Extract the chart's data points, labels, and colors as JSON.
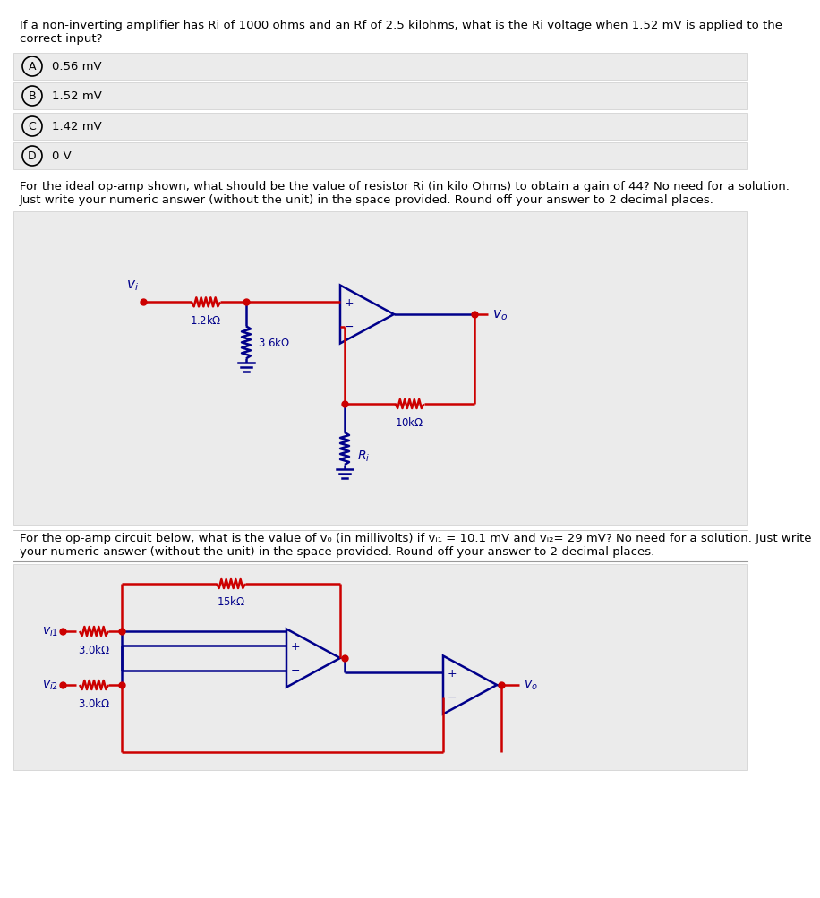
{
  "white": "#ffffff",
  "red": "#cc0000",
  "blue": "#00008B",
  "bg_gray": "#ebebeb",
  "black": "#000000",
  "q1_text_line1": "If a non-inverting amplifier has Ri of 1000 ohms and an Rf of 2.5 kilohms, what is the Ri voltage when 1.52 mV is applied to the",
  "q1_text_line2": "correct input?",
  "choices": [
    "0.56 mV",
    "1.52 mV",
    "1.42 mV",
    "0 V"
  ],
  "choice_labels": [
    "A",
    "B",
    "C",
    "D"
  ],
  "q2_line1": "For the ideal op-amp shown, what should be the value of resistor Ri (in kilo Ohms) to obtain a gain of 44? No need for a solution.",
  "q2_line2": "Just write your numeric answer (without the unit) in the space provided. Round off your answer to 2 decimal places.",
  "q3_line1": "For the op-amp circuit below, what is the value of v₀ (in millivolts) if vᵢ₁ = 10.1 mV and vᵢ₂= 29 mV? No need for a solution. Just write",
  "q3_line2": "your numeric answer (without the unit) in the space provided. Round off your answer to 2 decimal places."
}
